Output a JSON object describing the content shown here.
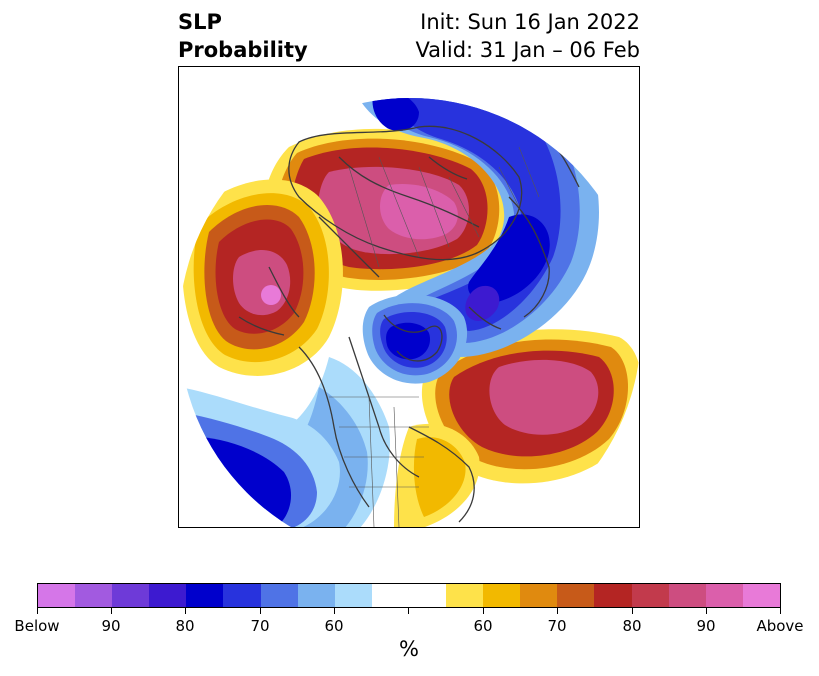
{
  "title": {
    "left_line1": "SLP",
    "left_line2": "Probability",
    "right_line1": "Init: Sun 16 Jan 2022",
    "right_line2": "Valid: 31 Jan – 06 Feb"
  },
  "map": {
    "projection": "north polar stereographic",
    "region": "Northern Hemisphere"
  },
  "colorbar": {
    "below_colors": [
      "#d576e8",
      "#a25ae0",
      "#6e3ad8",
      "#3d1ad0",
      "#0000cc",
      "#2833dd",
      "#4f73e6",
      "#7ab2ef",
      "#abdcfb"
    ],
    "neutral_color": "#ffffff",
    "above_colors": [
      "#fee24a",
      "#f2b900",
      "#e08a0f",
      "#c75a19",
      "#b42523",
      "#c23a4c",
      "#cd4d80",
      "#db5fab",
      "#e87ad8"
    ],
    "tick_labels": [
      "Below",
      "90",
      "80",
      "70",
      "60",
      "",
      "60",
      "70",
      "80",
      "90",
      "Above"
    ],
    "unit_label": "%"
  }
}
